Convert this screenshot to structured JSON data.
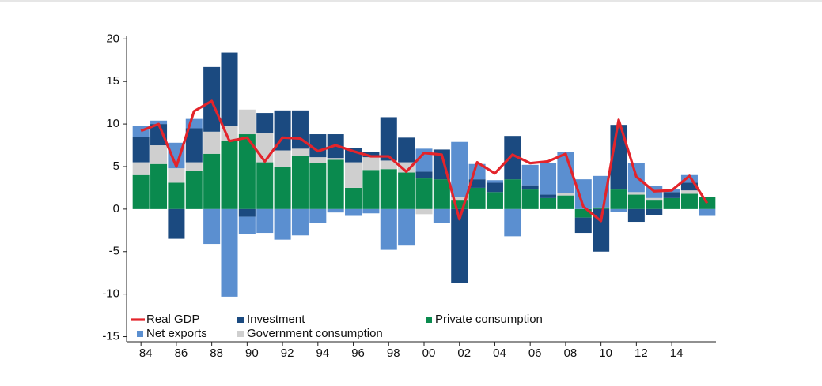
{
  "chart_data": {
    "type": "bar",
    "categories": [
      "84",
      null,
      "86",
      null,
      "88",
      null,
      "90",
      null,
      "92",
      null,
      "94",
      null,
      "96",
      null,
      "98",
      null,
      "00",
      null,
      "02",
      null,
      "04",
      null,
      "06",
      null,
      "08",
      null,
      "10",
      null,
      "12",
      null,
      "14",
      null,
      null
    ],
    "series": [
      {
        "name": "Real GDP",
        "type": "line",
        "color": "#e3242b",
        "values": [
          9.2,
          10.0,
          5.0,
          11.5,
          12.7,
          8.0,
          8.4,
          5.6,
          8.4,
          8.3,
          6.8,
          7.5,
          6.8,
          6.2,
          6.2,
          4.4,
          6.6,
          6.4,
          -1.2,
          5.5,
          4.2,
          6.4,
          5.4,
          5.6,
          6.5,
          0.3,
          -1.4,
          10.5,
          3.8,
          2.1,
          2.2,
          3.9,
          0.7
        ]
      },
      {
        "name": "Investment",
        "type": "bar",
        "color": "#1b4a80",
        "values": [
          3.0,
          2.5,
          -3.5,
          4.0,
          7.6,
          8.6,
          -0.9,
          2.4,
          4.7,
          4.5,
          2.7,
          2.8,
          1.7,
          0.6,
          5.1,
          2.9,
          0.8,
          3.5,
          -8.7,
          1.0,
          1.1,
          5.1,
          0.5,
          0.4,
          0.0,
          -1.8,
          -5.0,
          7.6,
          -1.5,
          -0.7,
          0.7,
          0.9,
          0.0
        ]
      },
      {
        "name": "Private consumption",
        "type": "bar",
        "color": "#0a8a4e",
        "values": [
          4.0,
          5.3,
          3.1,
          4.5,
          6.5,
          8.0,
          8.8,
          5.5,
          5.0,
          6.3,
          5.4,
          5.8,
          2.5,
          4.6,
          4.7,
          4.3,
          3.6,
          3.5,
          1.0,
          2.5,
          2.0,
          3.5,
          2.3,
          1.3,
          1.6,
          -1.0,
          0.2,
          2.3,
          1.7,
          1.0,
          1.3,
          1.8,
          1.4
        ]
      },
      {
        "name": "Net exports",
        "type": "bar",
        "color": "#5b8fd0",
        "values": [
          1.3,
          0.4,
          3.0,
          1.1,
          -4.1,
          -10.3,
          -2.0,
          -2.8,
          -3.6,
          -3.1,
          -1.6,
          -0.4,
          -0.8,
          -0.5,
          -4.8,
          -4.3,
          2.7,
          -1.6,
          6.5,
          1.8,
          0.3,
          -3.2,
          2.4,
          3.7,
          4.8,
          3.5,
          3.7,
          -0.3,
          3.4,
          1.4,
          0.4,
          0.9,
          -0.8
        ]
      },
      {
        "name": "Government consumption",
        "type": "bar",
        "color": "#cfcfcf",
        "values": [
          1.5,
          2.2,
          1.7,
          1.0,
          2.6,
          1.8,
          2.9,
          3.4,
          1.9,
          0.8,
          0.7,
          0.2,
          3.0,
          1.5,
          1.0,
          1.2,
          -0.6,
          0.0,
          0.4,
          0.0,
          0.0,
          0.0,
          0.0,
          0.0,
          0.3,
          0.0,
          0.0,
          0.0,
          0.3,
          0.3,
          0.0,
          0.4,
          0.0
        ]
      }
    ],
    "stacked": true,
    "ylim": [
      -15.6,
      20.4
    ],
    "yticks": [
      -15,
      -10,
      -5,
      0,
      5,
      10,
      15,
      20
    ]
  }
}
